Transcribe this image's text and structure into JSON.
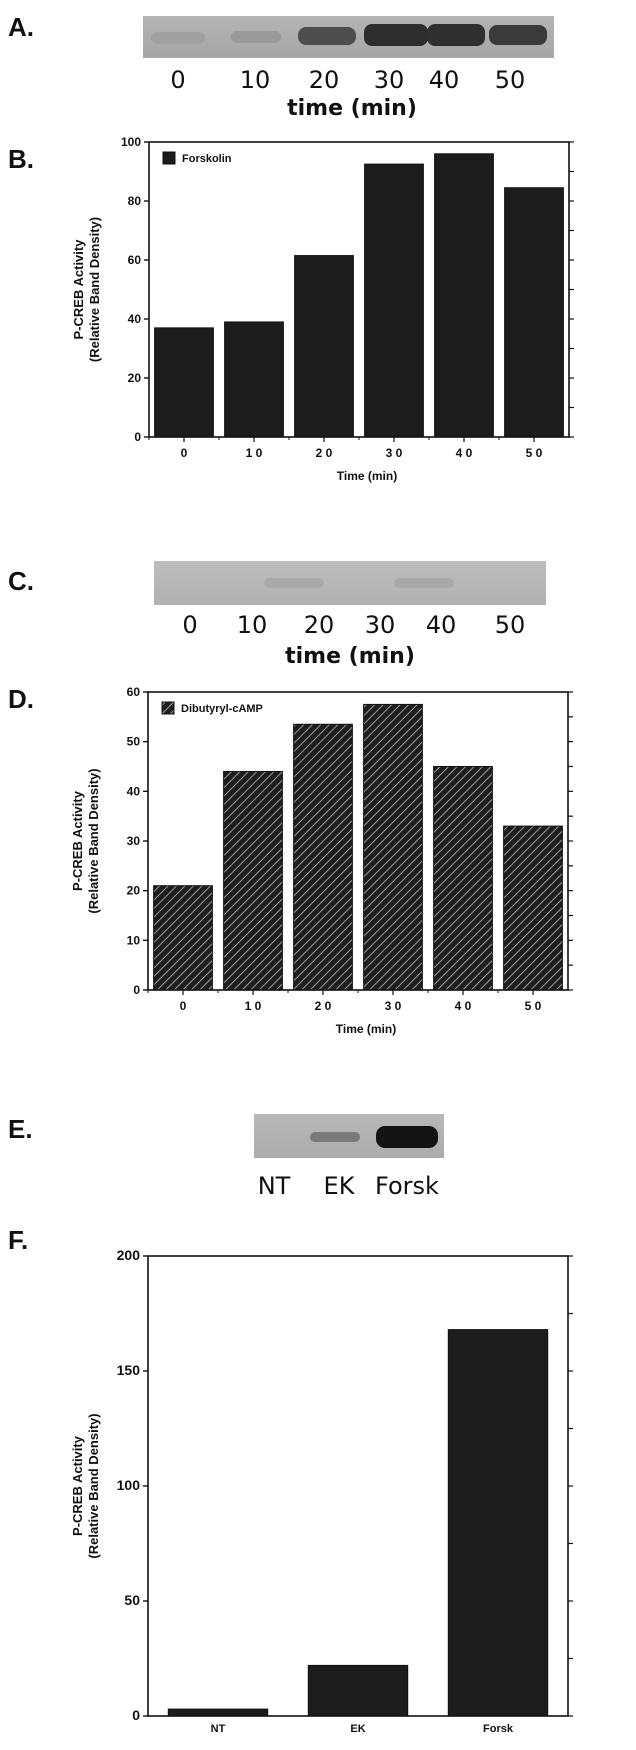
{
  "panels": {
    "a": "A.",
    "b": "B.",
    "c": "C.",
    "d": "D.",
    "e": "E.",
    "f": "F."
  },
  "blots": {
    "a": {
      "lanes": [
        "0",
        "10",
        "20",
        "30",
        "40",
        "50"
      ],
      "axis_title": "time (min)"
    },
    "c": {
      "lanes": [
        "0",
        "10",
        "20",
        "30",
        "40",
        "50"
      ],
      "axis_title": "time (min)"
    },
    "e": {
      "lanes": [
        "NT",
        "EK",
        "Forsk"
      ]
    }
  },
  "chart_data": [
    {
      "id": "B",
      "type": "bar",
      "categories": [
        "0",
        "1 0",
        "2 0",
        "3 0",
        "4 0",
        "5 0"
      ],
      "series": [
        {
          "name": "Forskolin",
          "values": [
            37,
            39,
            61.5,
            92.5,
            96,
            84.5
          ]
        }
      ],
      "ylim": [
        0,
        100
      ],
      "yticks": [
        0,
        20,
        40,
        60,
        80,
        100
      ],
      "ylabel": "P-CREB Activity",
      "ylabel2": "(Relative  Band  Density)",
      "xlabel": "Time  (min)",
      "legend": "top-left",
      "fill": "#1c1c1c"
    },
    {
      "id": "D",
      "type": "bar",
      "categories": [
        "0",
        "1 0",
        "2 0",
        "3 0",
        "4 0",
        "5 0"
      ],
      "series": [
        {
          "name": "Dibutyryl-cAMP",
          "values": [
            21,
            44,
            53.5,
            57.5,
            45,
            33
          ]
        }
      ],
      "ylim": [
        0,
        60
      ],
      "yticks": [
        0,
        10,
        20,
        30,
        40,
        50,
        60
      ],
      "ylabel": "P-CREB Activity",
      "ylabel2": "(Relative  Band  Density)",
      "xlabel": "Time  (min)",
      "legend": "top-left",
      "fill": "hatched"
    },
    {
      "id": "F",
      "type": "bar",
      "categories": [
        "NT",
        "EK",
        "Forsk"
      ],
      "series": [
        {
          "values": [
            3,
            22,
            168
          ]
        }
      ],
      "ylim": [
        0,
        200
      ],
      "yticks": [
        0,
        50,
        100,
        150,
        200
      ],
      "ylabel": "P-CREB Activity",
      "ylabel2": "(Relative  Band  Density)",
      "xlabel": "",
      "fill": "#1c1c1c"
    }
  ]
}
